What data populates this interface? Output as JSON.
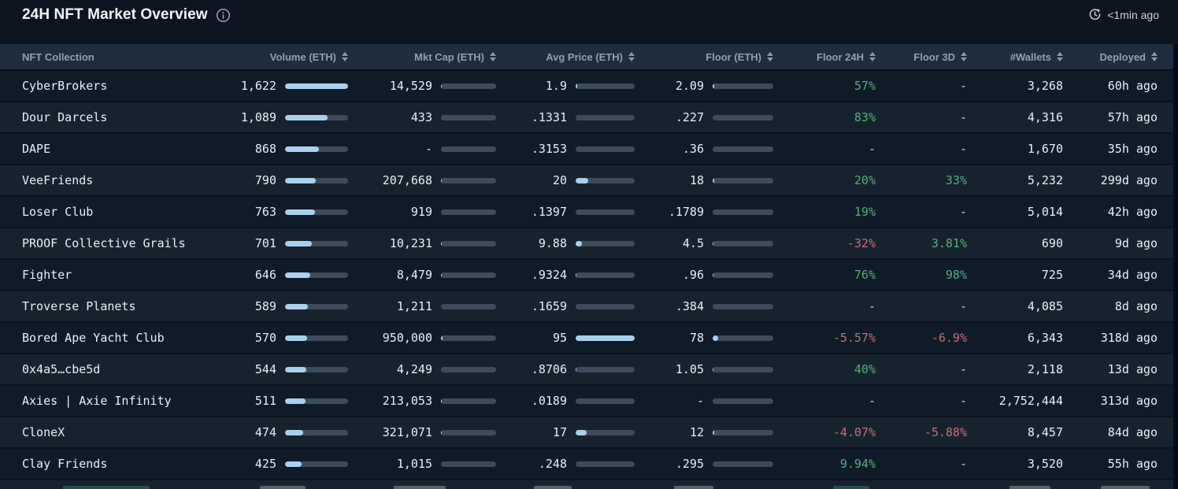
{
  "header": {
    "title": "24H NFT Market Overview",
    "updated": "<1min ago"
  },
  "icons": {
    "title_info": "info-circle",
    "updated": "clock-refresh",
    "sort": "sort-up-down-arrows"
  },
  "colors": {
    "bar_fill": "#a9d1ef",
    "bar_track": "#3d4c5c",
    "positive": "#53b07c",
    "negative": "#c76d76",
    "header_bg": "#1d2c3e",
    "row_odd": "#0f1b29",
    "row_even": "#16232f"
  },
  "table": {
    "columns": [
      {
        "label": "NFT Collection",
        "sortable": false
      },
      {
        "label": "Volume (ETH)",
        "sortable": true
      },
      {
        "label": "Mkt Cap (ETH)",
        "sortable": true
      },
      {
        "label": "Avg Price (ETH)",
        "sortable": true
      },
      {
        "label": "Floor (ETH)",
        "sortable": true
      },
      {
        "label": "Floor 24H",
        "sortable": true
      },
      {
        "label": "Floor 3D",
        "sortable": true
      },
      {
        "label": "#Wallets",
        "sortable": true
      },
      {
        "label": "Deployed",
        "sortable": true
      }
    ],
    "rows": [
      {
        "name": "CyberBrokers",
        "volume": "1,622",
        "vol_pct": 100,
        "mkt_cap": "14,529",
        "mcap_pct": 2,
        "avg_price": "1.9",
        "avg_pct": 2,
        "floor": "2.09",
        "floor_pct": 2,
        "floor_24h": "57%",
        "floor_3d": "-",
        "wallets": "3,268",
        "deployed": "60h ago"
      },
      {
        "name": "Dour Darcels",
        "volume": "1,089",
        "vol_pct": 67,
        "mkt_cap": "433",
        "mcap_pct": 0,
        "avg_price": ".1331",
        "avg_pct": 0,
        "floor": ".227",
        "floor_pct": 0,
        "floor_24h": "83%",
        "floor_3d": "-",
        "wallets": "4,316",
        "deployed": "57h ago"
      },
      {
        "name": "DAPE",
        "volume": "868",
        "vol_pct": 54,
        "mkt_cap": "-",
        "mcap_pct": 0,
        "avg_price": ".3153",
        "avg_pct": 0,
        "floor": ".36",
        "floor_pct": 0,
        "floor_24h": "-",
        "floor_3d": "-",
        "wallets": "1,670",
        "deployed": "35h ago"
      },
      {
        "name": "VeeFriends",
        "volume": "790",
        "vol_pct": 49,
        "mkt_cap": "207,668",
        "mcap_pct": 2,
        "avg_price": "20",
        "avg_pct": 21,
        "floor": "18",
        "floor_pct": 3,
        "floor_24h": "20%",
        "floor_3d": "33%",
        "wallets": "5,232",
        "deployed": "299d ago"
      },
      {
        "name": "Loser Club",
        "volume": "763",
        "vol_pct": 47,
        "mkt_cap": "919",
        "mcap_pct": 0,
        "avg_price": ".1397",
        "avg_pct": 0,
        "floor": ".1789",
        "floor_pct": 0,
        "floor_24h": "19%",
        "floor_3d": "-",
        "wallets": "5,014",
        "deployed": "42h ago"
      },
      {
        "name": "PROOF Collective Grails",
        "volume": "701",
        "vol_pct": 43,
        "mkt_cap": "10,231",
        "mcap_pct": 1,
        "avg_price": "9.88",
        "avg_pct": 10,
        "floor": "4.5",
        "floor_pct": 1,
        "floor_24h": "-32%",
        "floor_3d": "3.81%",
        "wallets": "690",
        "deployed": "9d ago"
      },
      {
        "name": "Fighter",
        "volume": "646",
        "vol_pct": 40,
        "mkt_cap": "8,479",
        "mcap_pct": 1,
        "avg_price": ".9324",
        "avg_pct": 1,
        "floor": ".96",
        "floor_pct": 1,
        "floor_24h": "76%",
        "floor_3d": "98%",
        "wallets": "725",
        "deployed": "34d ago"
      },
      {
        "name": "Troverse Planets",
        "volume": "589",
        "vol_pct": 36,
        "mkt_cap": "1,211",
        "mcap_pct": 0,
        "avg_price": ".1659",
        "avg_pct": 0,
        "floor": ".384",
        "floor_pct": 0,
        "floor_24h": "-",
        "floor_3d": "-",
        "wallets": "4,085",
        "deployed": "8d ago"
      },
      {
        "name": "Bored Ape Yacht Club",
        "volume": "570",
        "vol_pct": 35,
        "mkt_cap": "950,000",
        "mcap_pct": 3,
        "avg_price": "95",
        "avg_pct": 100,
        "floor": "78",
        "floor_pct": 9,
        "floor_24h": "-5.57%",
        "floor_3d": "-6.9%",
        "wallets": "6,343",
        "deployed": "318d ago"
      },
      {
        "name": "0x4a5…cbe5d",
        "volume": "544",
        "vol_pct": 34,
        "mkt_cap": "4,249",
        "mcap_pct": 0,
        "avg_price": ".8706",
        "avg_pct": 1,
        "floor": "1.05",
        "floor_pct": 1,
        "floor_24h": "40%",
        "floor_3d": "-",
        "wallets": "2,118",
        "deployed": "13d ago"
      },
      {
        "name": "Axies | Axie Infinity",
        "volume": "511",
        "vol_pct": 32,
        "mkt_cap": "213,053",
        "mcap_pct": 2,
        "avg_price": ".0189",
        "avg_pct": 0,
        "floor": "-",
        "floor_pct": 0,
        "floor_24h": "-",
        "floor_3d": "-",
        "wallets": "2,752,444",
        "deployed": "313d ago"
      },
      {
        "name": "CloneX",
        "volume": "474",
        "vol_pct": 29,
        "mkt_cap": "321,071",
        "mcap_pct": 2,
        "avg_price": "17",
        "avg_pct": 18,
        "floor": "12",
        "floor_pct": 2,
        "floor_24h": "-4.07%",
        "floor_3d": "-5.88%",
        "wallets": "8,457",
        "deployed": "84d ago"
      },
      {
        "name": "Clay Friends",
        "volume": "425",
        "vol_pct": 26,
        "mkt_cap": "1,015",
        "mcap_pct": 0,
        "avg_price": ".248",
        "avg_pct": 0,
        "floor": ".295",
        "floor_pct": 0,
        "floor_24h": "9.94%",
        "floor_3d": "-",
        "wallets": "3,520",
        "deployed": "55h ago"
      }
    ]
  }
}
